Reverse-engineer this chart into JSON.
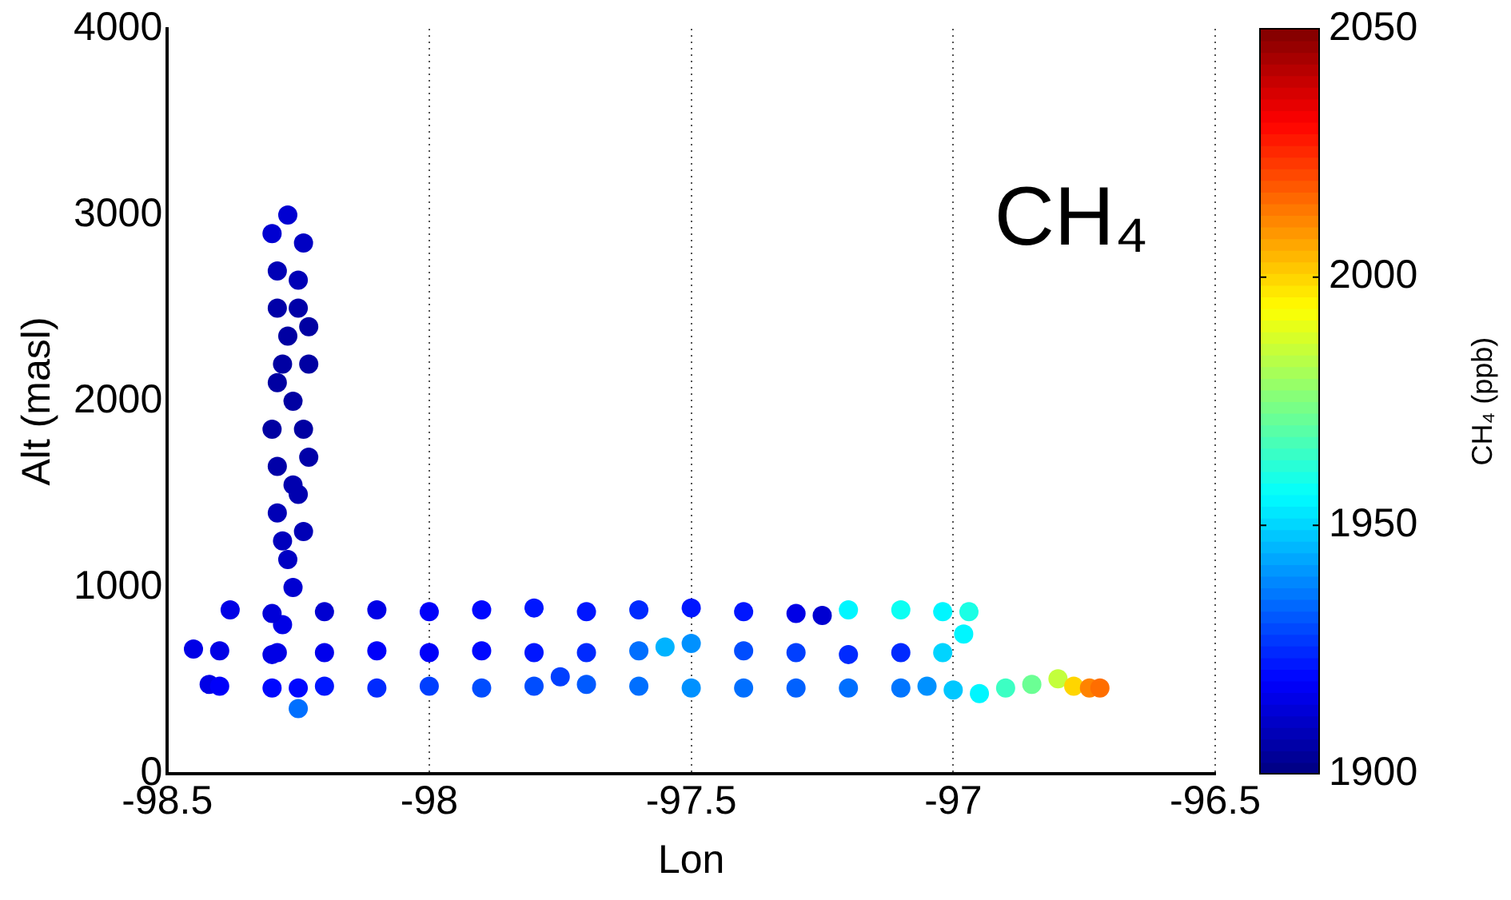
{
  "chart_data": {
    "type": "scatter",
    "xlabel": "Lon",
    "ylabel": "Alt (masl)",
    "clabel": "CH₄ (ppb)",
    "annotations": [
      "CH₄"
    ],
    "xlim": [
      -98.5,
      -96.5
    ],
    "xticks": [
      -98.5,
      -98,
      -97.5,
      -97,
      -96.5
    ],
    "ylim": [
      0,
      4000
    ],
    "yticks": [
      0,
      1000,
      2000,
      3000,
      4000
    ],
    "clim": [
      1900,
      2050
    ],
    "cticks": [
      1900,
      1950,
      2000,
      2050
    ],
    "grid": "x",
    "marker": "circle",
    "series": [
      {
        "x": [
          -98.27,
          -98.24,
          -98.25,
          -98.29,
          -98.27,
          -98.23,
          -98.26,
          -98.3,
          -98.29,
          -98.25,
          -98.24,
          -98.27,
          -98.26,
          -98.28,
          -98.29,
          -98.3,
          -98.29,
          -98.25,
          -98.23,
          -98.28,
          -98.29,
          -98.24,
          -98.23,
          -98.26,
          -98.29,
          -98.28,
          -98.38,
          -98.3,
          -98.2,
          -98.1,
          -98,
          -97.9,
          -97.8,
          -97.7,
          -97.6,
          -97.5,
          -97.4,
          -97.3,
          -97.25,
          -97.2,
          -97.1,
          -97.02,
          -96.97,
          -96.98,
          -97.02,
          -97.1,
          -97.2,
          -97.3,
          -97.4,
          -97.5,
          -97.55,
          -97.6,
          -97.7,
          -97.8,
          -97.9,
          -98,
          -98.1,
          -98.2,
          -98.3,
          -98.4,
          -98.45,
          -98.42,
          -98.4,
          -98.3,
          -98.25,
          -98.25,
          -98.2,
          -98.1,
          -98,
          -97.9,
          -97.8,
          -97.75,
          -97.7,
          -97.6,
          -97.5,
          -97.4,
          -97.3,
          -97.2,
          -97.1,
          -97.05,
          -97,
          -96.95,
          -96.9,
          -96.85,
          -96.8,
          -96.77,
          -96.74,
          -96.72
        ],
        "values": [
          3000,
          2850,
          2650,
          2500,
          2350,
          2200,
          2000,
          1850,
          1650,
          1500,
          1300,
          1150,
          1000,
          800,
          650,
          2900,
          2700,
          2500,
          2400,
          2200,
          2100,
          1850,
          1700,
          1550,
          1400,
          1250,
          880,
          860,
          870,
          880,
          870,
          880,
          890,
          870,
          880,
          890,
          870,
          860,
          850,
          880,
          880,
          870,
          870,
          750,
          650,
          650,
          640,
          650,
          660,
          700,
          680,
          660,
          650,
          650,
          660,
          650,
          660,
          650,
          640,
          660,
          670,
          480,
          470,
          460,
          350,
          460,
          470,
          460,
          470,
          460,
          470,
          520,
          480,
          470,
          460,
          460,
          460,
          460,
          460,
          470,
          450,
          430,
          460,
          480,
          510,
          470,
          460,
          460
        ],
        "cvalues": [
          1912,
          1910,
          1908,
          1906,
          1905,
          1905,
          1905,
          1905,
          1906,
          1907,
          1908,
          1910,
          1912,
          1915,
          1915,
          1912,
          1908,
          1906,
          1905,
          1905,
          1905,
          1905,
          1906,
          1907,
          1908,
          1909,
          1915,
          1913,
          1912,
          1915,
          1918,
          1920,
          1922,
          1922,
          1925,
          1922,
          1922,
          1915,
          1912,
          1955,
          1958,
          1955,
          1960,
          1955,
          1950,
          1925,
          1925,
          1928,
          1930,
          1940,
          1945,
          1935,
          1925,
          1922,
          1920,
          1918,
          1918,
          1916,
          1915,
          1915,
          1915,
          1915,
          1918,
          1920,
          1935,
          1920,
          1922,
          1925,
          1928,
          1930,
          1930,
          1928,
          1932,
          1935,
          1940,
          1935,
          1933,
          1935,
          1936,
          1940,
          1948,
          1955,
          1965,
          1972,
          1985,
          2000,
          2012,
          2015
        ]
      }
    ]
  }
}
